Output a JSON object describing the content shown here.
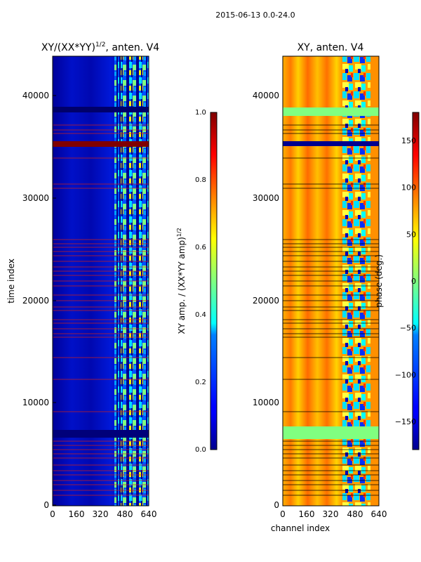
{
  "figure_title": "2015-06-13 0.0-24.0",
  "chart_data": [
    {
      "type": "heatmap",
      "title_main": "XY/(XX*YY)",
      "title_exp": "1/2",
      "title_tail": ", anten. V4",
      "ylabel": "time index",
      "xlabel": "",
      "xlim": [
        0,
        640
      ],
      "ylim": [
        0,
        44000
      ],
      "xticks": [
        "0",
        "160",
        "320",
        "480",
        "640"
      ],
      "yticks": [
        "0",
        "10000",
        "20000",
        "30000",
        "40000"
      ],
      "colorbar": {
        "label_main": "XY amp. / (XX*YY amp)",
        "label_exp": "1/2",
        "ticks": [
          "0.0",
          "0.2",
          "0.4",
          "0.6",
          "0.8",
          "1.0"
        ],
        "range": [
          0.0,
          1.0
        ],
        "colormap": "jet"
      },
      "description_values": {
        "background_level": 0.1,
        "bright_channel_range": [
          410,
          640
        ],
        "saturated_band_time": [
          34900,
          35600
        ],
        "gap_band_time": [
          38100,
          38500
        ],
        "gap_band_time_2": [
          6800,
          7400
        ]
      }
    },
    {
      "type": "heatmap",
      "title": "XY, anten. V4",
      "ylabel": "",
      "xlabel": "channel index",
      "xlim": [
        0,
        640
      ],
      "ylim": [
        0,
        44000
      ],
      "xticks": [
        "0",
        "160",
        "320",
        "480",
        "640"
      ],
      "yticks": [
        "0",
        "10000",
        "20000",
        "30000",
        "40000"
      ],
      "colorbar": {
        "label": "phase (deg.)",
        "ticks": [
          "150",
          "100",
          "50",
          "0",
          "−50",
          "−100",
          "−150"
        ],
        "tick_values": [
          150,
          100,
          50,
          0,
          -50,
          -100,
          -150
        ],
        "range": [
          -180,
          180
        ],
        "colormap": "jet"
      },
      "description_values": {
        "background_phase_deg": 60,
        "noisy_channel_range": [
          400,
          600
        ],
        "flagged_band_time": [
          34900,
          35600
        ],
        "green_band_time": [
          37900,
          38700
        ],
        "green_band_time_2": [
          6900,
          7800
        ]
      }
    }
  ],
  "colors": {
    "jet_darkblue": "#00008f",
    "jet_blue": "#0000ff",
    "jet_cyan": "#00ffff",
    "jet_yellow": "#ffff00",
    "jet_orange": "#ff8000",
    "jet_darkred": "#800000",
    "flag_line_red": "#cc2020",
    "flag_line_black": "#000000"
  }
}
